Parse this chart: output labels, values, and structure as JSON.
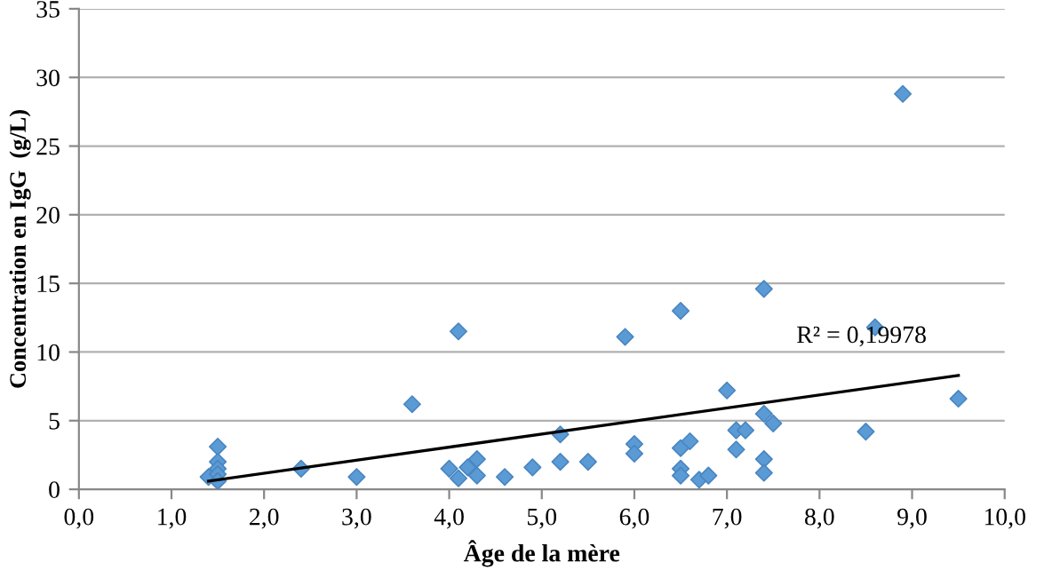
{
  "chart_data": {
    "type": "scatter",
    "xlabel": "Âge de la mère",
    "ylabel": "Concentration en IgG  (g/L)",
    "xlim": [
      0,
      10
    ],
    "ylim": [
      0,
      35
    ],
    "xticks": [
      {
        "value": 0,
        "label": "0,0"
      },
      {
        "value": 1,
        "label": "1,0"
      },
      {
        "value": 2,
        "label": "2,0"
      },
      {
        "value": 3,
        "label": "3,0"
      },
      {
        "value": 4,
        "label": "4,0"
      },
      {
        "value": 5,
        "label": "5,0"
      },
      {
        "value": 6,
        "label": "6,0"
      },
      {
        "value": 7,
        "label": "7,0"
      },
      {
        "value": 8,
        "label": "8,0"
      },
      {
        "value": 9,
        "label": "9,0"
      },
      {
        "value": 10,
        "label": "10,0"
      }
    ],
    "yticks": [
      0,
      5,
      10,
      15,
      20,
      25,
      30,
      35
    ],
    "grid": "y",
    "marker": "diamond",
    "legend": false,
    "annotations": [
      "R² = 0,19978"
    ],
    "series": [
      {
        "color": "#5b9bd5",
        "x": [
          1.4,
          1.5,
          1.5,
          1.5,
          1.5,
          1.5,
          2.4,
          3.0,
          3.6,
          4.0,
          4.1,
          4.1,
          4.2,
          4.3,
          4.3,
          4.6,
          4.9,
          5.2,
          5.2,
          5.5,
          5.9,
          6.0,
          6.0,
          6.5,
          6.5,
          6.5,
          6.5,
          6.6,
          6.7,
          6.8,
          7.0,
          7.1,
          7.1,
          7.2,
          7.4,
          7.4,
          7.4,
          7.4,
          7.5,
          8.5,
          8.6,
          8.9,
          9.5
        ],
        "values": [
          0.9,
          3.1,
          2.0,
          1.5,
          1.1,
          0.6,
          1.5,
          0.9,
          6.2,
          1.5,
          11.5,
          0.8,
          1.6,
          2.2,
          1.0,
          0.9,
          1.6,
          4.0,
          2.0,
          2.0,
          11.1,
          3.3,
          2.6,
          13.0,
          3.0,
          1.5,
          1.0,
          3.5,
          0.7,
          1.0,
          7.2,
          4.3,
          2.9,
          4.3,
          14.6,
          5.5,
          2.2,
          1.2,
          4.8,
          4.2,
          11.8,
          28.8,
          6.6
        ]
      },
      {
        "type": "line",
        "color": "#000000",
        "marker": "none",
        "x": [
          1.4,
          9.5
        ],
        "values": [
          0.6,
          8.3
        ]
      }
    ]
  }
}
